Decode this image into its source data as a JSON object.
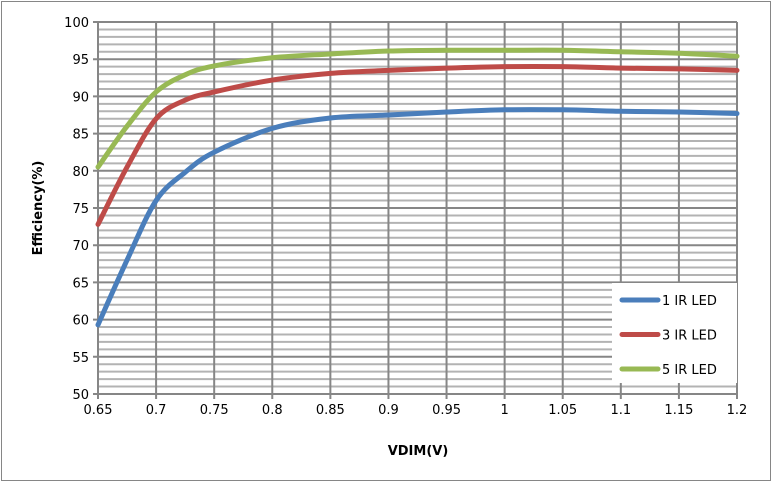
{
  "chart_data": {
    "type": "line",
    "title": "",
    "xlabel": "VDIM(V)",
    "ylabel": "Efficiency(%)",
    "xlim": [
      0.65,
      1.2
    ],
    "ylim": [
      50,
      100
    ],
    "x_ticks": [
      "0.65",
      "0.7",
      "0.75",
      "0.8",
      "0.85",
      "0.9",
      "0.95",
      "1",
      "1.05",
      "1.1",
      "1.15",
      "1.2"
    ],
    "y_ticks": [
      "50",
      "55",
      "60",
      "65",
      "70",
      "75",
      "80",
      "85",
      "90",
      "95",
      "100"
    ],
    "grid": {
      "major_y": 5,
      "minor_y": 1,
      "major_x": 0.05
    },
    "legend_position": "bottom-right",
    "x": [
      0.65,
      0.675,
      0.7,
      0.725,
      0.75,
      0.8,
      0.85,
      0.9,
      0.95,
      1.0,
      1.05,
      1.1,
      1.15,
      1.2
    ],
    "series": [
      {
        "name": "1 IR LED",
        "color": "#4a7ebb",
        "values": [
          59.3,
          68.0,
          76.0,
          79.8,
          82.5,
          85.7,
          87.1,
          87.5,
          87.9,
          88.2,
          88.2,
          88.0,
          87.9,
          87.7
        ]
      },
      {
        "name": "3 IR LED",
        "color": "#be4b48",
        "values": [
          72.8,
          80.5,
          87.0,
          89.5,
          90.6,
          92.2,
          93.1,
          93.5,
          93.8,
          94.0,
          94.0,
          93.8,
          93.7,
          93.5
        ]
      },
      {
        "name": "5 IR LED",
        "color": "#98b954",
        "values": [
          80.5,
          86.0,
          90.6,
          92.9,
          94.1,
          95.2,
          95.7,
          96.1,
          96.2,
          96.2,
          96.2,
          96.0,
          95.8,
          95.4
        ]
      }
    ]
  }
}
